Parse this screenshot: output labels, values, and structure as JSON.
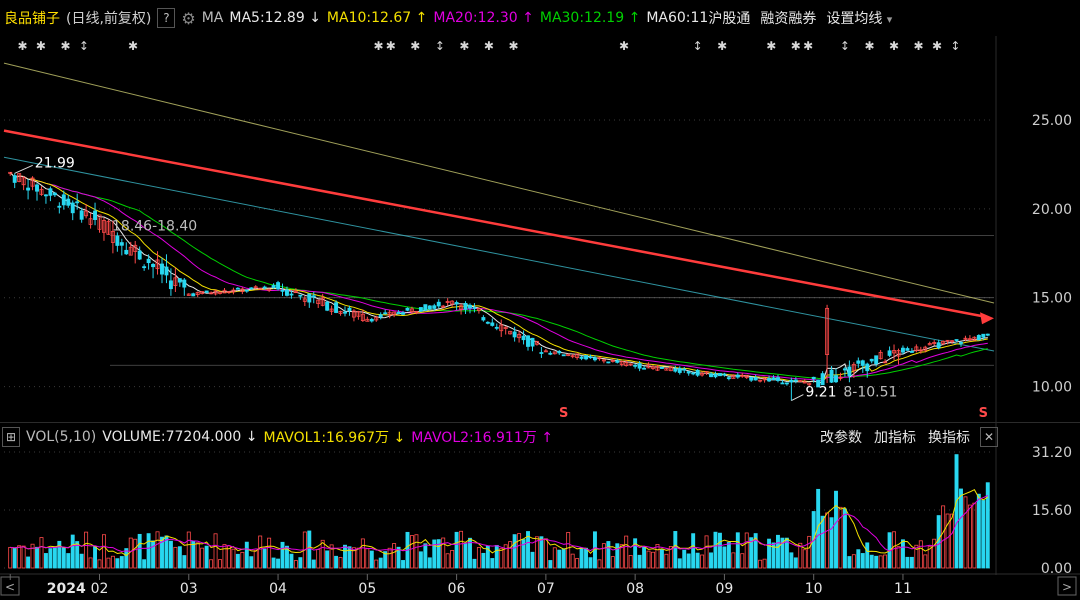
{
  "header": {
    "stock_name": "良品铺子",
    "period": "(日线,前复权)",
    "help": "?",
    "ma_label": "MA",
    "ma5": "MA5:12.89",
    "ma5_arrow": "↓",
    "ma10": "MA10:12.67",
    "ma10_arrow": "↑",
    "ma20": "MA20:12.30",
    "ma20_arrow": "↑",
    "ma30": "MA30:12.19",
    "ma30_arrow": "↑",
    "ma60": "MA60:11",
    "hgt": "沪股通",
    "rzrq": "融资融券",
    "settings": "设置均线",
    "settings_arrow": "▾"
  },
  "volume_header": {
    "vol_label": "VOL(5,10)",
    "volume": "VOLUME:77204.000",
    "volume_arrow": "↓",
    "mavol1": "MAVOL1:16.967万",
    "mavol1_arrow": "↓",
    "mavol2": "MAVOL2:16.911万",
    "mavol2_arrow": "↑",
    "btn_params": "改参数",
    "btn_add": "加指标",
    "btn_switch": "换指标",
    "close": "✕"
  },
  "colors": {
    "up": "#ff4a4a",
    "down": "#28d7f0",
    "ma5": "#e8e8e8",
    "ma10": "#f3e000",
    "ma20": "#e000e0",
    "ma30": "#00d000",
    "ma60": "#3bb8c8",
    "ma_long": "#c8c870",
    "trend": "#ff3c3c",
    "grid": "#3a3a3a",
    "axis_text": "#cfcfcf"
  },
  "chart_data": {
    "type": "candlestick",
    "price_axis": {
      "ticks": [
        10.0,
        15.0,
        20.0,
        25.0
      ],
      "tick_labels": [
        "10.00",
        "15.00",
        "20.00",
        "25.00"
      ],
      "range": [
        8.4,
        29.5
      ]
    },
    "volume_axis": {
      "ticks": [
        0,
        15.6,
        31.2
      ],
      "tick_labels": [
        "0.00",
        "15.60",
        "31.20"
      ],
      "range": [
        0,
        31.2
      ]
    },
    "x_labels": [
      "2024",
      "02",
      "03",
      "04",
      "05",
      "06",
      "07",
      "08",
      "09",
      "10",
      "11"
    ],
    "annotations": {
      "high_label": "21.99",
      "low_label": "9.21",
      "range_label_1": "18.46-18.40",
      "range_label_2": "8-10.51",
      "s_marker": "S"
    },
    "horizontal_levels": [
      18.5,
      15.0,
      11.2
    ],
    "trendline": {
      "from": 24.4,
      "to": 13.9
    },
    "months": [
      {
        "name": "2024",
        "open": 22.0,
        "close": 19.3,
        "high": 22.0,
        "low": 17.0
      },
      {
        "name": "02",
        "open": 19.3,
        "close": 15.2,
        "high": 19.5,
        "low": 12.8
      },
      {
        "name": "03",
        "open": 15.2,
        "close": 15.6,
        "high": 16.2,
        "low": 14.8
      },
      {
        "name": "04",
        "open": 15.6,
        "close": 13.8,
        "high": 16.8,
        "low": 13.2
      },
      {
        "name": "05",
        "open": 13.8,
        "close": 14.8,
        "high": 15.4,
        "low": 13.6
      },
      {
        "name": "06",
        "open": 14.8,
        "close": 12.0,
        "high": 15.0,
        "low": 11.6
      },
      {
        "name": "07",
        "open": 12.0,
        "close": 11.2,
        "high": 12.2,
        "low": 10.8
      },
      {
        "name": "08",
        "open": 11.2,
        "close": 10.6,
        "high": 11.6,
        "low": 10.0
      },
      {
        "name": "09",
        "open": 10.6,
        "close": 10.2,
        "high": 10.8,
        "low": 9.21
      },
      {
        "name": "10",
        "open": 10.2,
        "close": 12.0,
        "high": 14.6,
        "low": 10.2
      },
      {
        "name": "11",
        "open": 12.0,
        "close": 12.9,
        "high": 13.8,
        "low": 11.8
      }
    ],
    "ma_last": {
      "MA5": 12.89,
      "MA10": 12.67,
      "MA20": 12.3,
      "MA30": 12.19
    },
    "mavol_last": {
      "MAVOL1": 16.967,
      "MAVOL2": 16.911
    }
  }
}
